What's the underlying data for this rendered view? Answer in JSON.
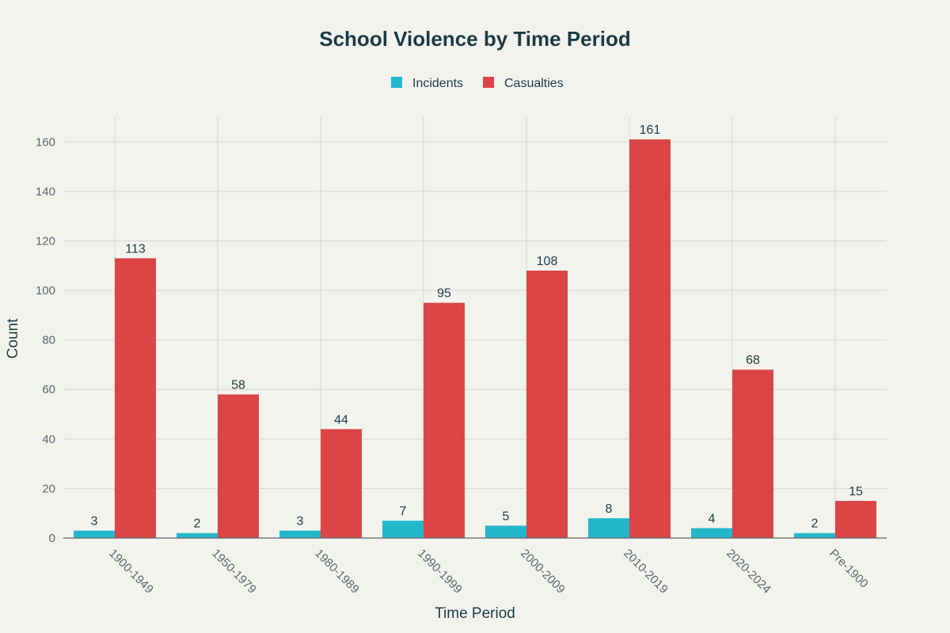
{
  "chart_data": {
    "type": "bar",
    "title": "School Violence by Time Period",
    "xlabel": "Time Period",
    "ylabel": "Count",
    "ylim": [
      0,
      170
    ],
    "yticks": [
      0,
      20,
      40,
      60,
      80,
      100,
      120,
      140,
      160
    ],
    "categories": [
      "1900-1949",
      "1950-1979",
      "1980-1989",
      "1990-1999",
      "2000-2009",
      "2010-2019",
      "2020-2024",
      "Pre-1900"
    ],
    "series": [
      {
        "name": "Incidents",
        "color": "#22b8cc",
        "values": [
          3,
          2,
          3,
          7,
          5,
          8,
          4,
          2
        ]
      },
      {
        "name": "Casualties",
        "color": "#db4545",
        "values": [
          113,
          58,
          44,
          95,
          108,
          161,
          68,
          15
        ]
      }
    ],
    "grid": true,
    "legend": "top-center"
  }
}
